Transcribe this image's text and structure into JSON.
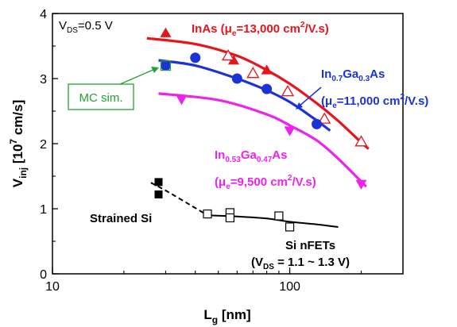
{
  "chart_data": {
    "type": "scatter",
    "x_scale": "log",
    "xlim": [
      10,
      300
    ],
    "ylim": [
      0,
      4
    ],
    "xlabel": {
      "main": "L",
      "sub": "g",
      "rest": " [nm]"
    },
    "ylabel": {
      "main": "V",
      "sub": "inj",
      "rest": " [10",
      "sup": "7",
      "rest2": " cm/s]"
    },
    "x_ticks": [
      {
        "value": 10,
        "label": "10"
      },
      {
        "value": 100,
        "label": "100"
      }
    ],
    "y_ticks": [
      {
        "value": 0,
        "label": "0"
      },
      {
        "value": 1,
        "label": "1"
      },
      {
        "value": 2,
        "label": "2"
      },
      {
        "value": 3,
        "label": "3"
      },
      {
        "value": 4,
        "label": "4"
      }
    ],
    "corner_label": {
      "main": "V",
      "sub": "DS",
      "rest": "=0.5 V"
    },
    "colors": {
      "inas": "#e8131b",
      "ingaas07": "#1b32d6",
      "ingaas053": "#ee22ee",
      "si": "#000000",
      "mc": "#22a234"
    },
    "series": [
      {
        "key": "inas",
        "marker": "triangle-up-filled",
        "points": [
          [
            30,
            3.7
          ],
          [
            58,
            3.28
          ],
          [
            80,
            3.13
          ]
        ],
        "open_marker": "triangle-up-open",
        "open_points": [
          [
            55,
            3.35
          ],
          [
            70,
            3.08
          ],
          [
            98,
            2.8
          ],
          [
            140,
            2.38
          ],
          [
            200,
            2.03
          ]
        ],
        "fit": [
          [
            25,
            3.62
          ],
          [
            40,
            3.53
          ],
          [
            60,
            3.35
          ],
          [
            80,
            3.13
          ],
          [
            100,
            2.92
          ],
          [
            130,
            2.62
          ],
          [
            160,
            2.35
          ],
          [
            200,
            2.02
          ],
          [
            215,
            1.92
          ]
        ]
      },
      {
        "key": "ingaas07",
        "marker": "circle-filled",
        "points": [
          [
            30,
            3.2
          ],
          [
            40,
            3.32
          ],
          [
            60,
            3.0
          ],
          [
            80,
            2.84
          ],
          [
            130,
            2.3
          ]
        ],
        "fit": [
          [
            28,
            3.28
          ],
          [
            40,
            3.2
          ],
          [
            60,
            3.0
          ],
          [
            80,
            2.82
          ],
          [
            100,
            2.64
          ],
          [
            125,
            2.4
          ],
          [
            148,
            2.2
          ]
        ]
      },
      {
        "key": "ingaas053",
        "marker": "triangle-down-filled",
        "points": [
          [
            35,
            2.68
          ],
          [
            100,
            2.2
          ],
          [
            200,
            1.38
          ]
        ],
        "fit": [
          [
            28,
            2.77
          ],
          [
            50,
            2.67
          ],
          [
            80,
            2.45
          ],
          [
            100,
            2.28
          ],
          [
            130,
            2.05
          ],
          [
            160,
            1.77
          ],
          [
            210,
            1.34
          ]
        ]
      },
      {
        "key": "si",
        "marker": "square-open",
        "points": [
          [
            45,
            0.92
          ],
          [
            56,
            0.94
          ],
          [
            56,
            0.86
          ],
          [
            90,
            0.89
          ],
          [
            100,
            0.72
          ]
        ],
        "fit": [
          [
            45,
            0.9
          ],
          [
            60,
            0.88
          ],
          [
            80,
            0.85
          ],
          [
            100,
            0.8
          ],
          [
            130,
            0.76
          ],
          [
            160,
            0.72
          ]
        ]
      },
      {
        "key": "strained_si",
        "marker": "square-filled",
        "points": [
          [
            28,
            1.41
          ],
          [
            28,
            1.22
          ]
        ],
        "fit": [
          [
            26,
            1.4
          ],
          [
            30,
            1.28
          ],
          [
            38,
            1.06
          ],
          [
            45,
            0.9
          ]
        ]
      }
    ],
    "mc_sim_point": [
      30,
      3.2
    ],
    "annotations": {
      "inas": {
        "pre": "InAs (μ",
        "sub": "e",
        "mid": "=13,000 cm",
        "sup": "2",
        "post": "/V.s)"
      },
      "ingaas07_formula": {
        "a": "In",
        "a_sub": "0.7",
        "b": "Ga",
        "b_sub": "0.3",
        "c": "As"
      },
      "ingaas07_mobility": {
        "pre": "(μ",
        "sub": "e",
        "mid": "=11,000 cm",
        "sup": "2",
        "post": "/V.s)"
      },
      "ingaas053_formula": {
        "a": "In",
        "a_sub": "0.53",
        "b": "Ga",
        "b_sub": "0.47",
        "c": "As"
      },
      "ingaas053_mobility": {
        "pre": "(μ",
        "sub": "e",
        "mid": "=9,500 cm",
        "sup": "2",
        "post": "/V.s)"
      },
      "mc_sim": "MC sim.",
      "strained_si": "Strained Si",
      "si_nfets": "Si nFETs",
      "si_vds": {
        "pre": "(V",
        "sub": "DS",
        "post": " = 1.1 ~ 1.3 V)"
      }
    }
  }
}
